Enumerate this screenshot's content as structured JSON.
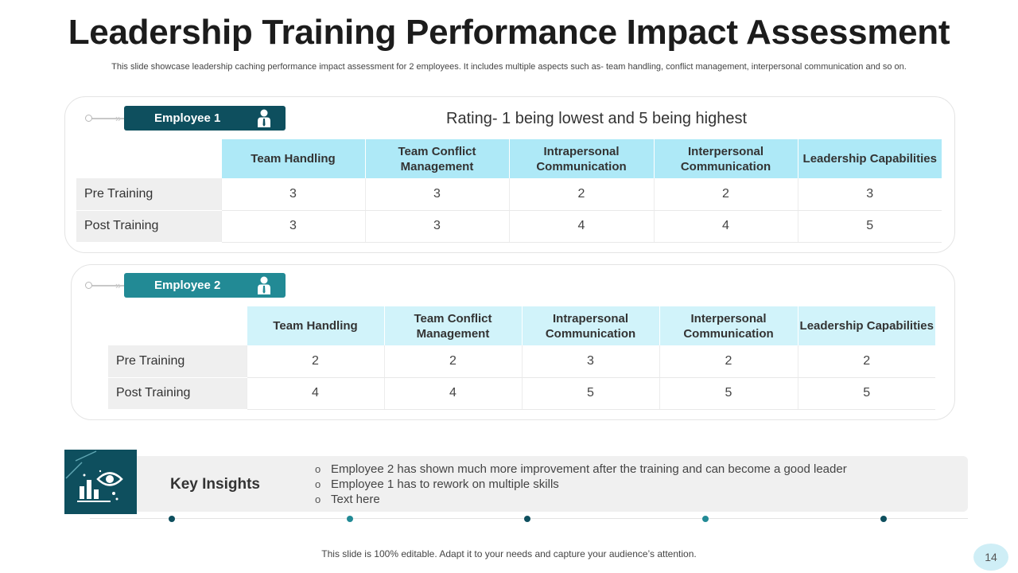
{
  "title": "Leadership Training Performance Impact Assessment",
  "subtitle": "This slide showcase leadership caching performance impact assessment for 2 employees. It includes multiple aspects such as- team handling, conflict management, interpersonal communication and so on.",
  "rating_note": "Rating- 1 being lowest and 5 being highest",
  "colors": {
    "employee1_badge": "#0e4f5e",
    "employee2_badge": "#228a95",
    "header_cell": "#aee9f7",
    "header_cell_2": "#d1f3fa",
    "dark_teal": "#0e4f5e",
    "teal": "#228a95"
  },
  "employee1": {
    "label": "Employee 1",
    "icon": "person-icon",
    "headers": [
      "Team Handling",
      "Team Conflict Management",
      "Intrapersonal Communication",
      "Interpersonal Communication",
      "Leadership Capabilities"
    ],
    "rows": [
      {
        "label": "Pre Training",
        "values": [
          "3",
          "3",
          "2",
          "2",
          "3"
        ]
      },
      {
        "label": "Post Training",
        "values": [
          "3",
          "3",
          "4",
          "4",
          "5"
        ]
      }
    ]
  },
  "employee2": {
    "label": "Employee 2",
    "icon": "person-icon",
    "headers": [
      "Team Handling",
      "Team Conflict Management",
      "Intrapersonal Communication",
      "Interpersonal Communication",
      "Leadership Capabilities"
    ],
    "rows": [
      {
        "label": "Pre Training",
        "values": [
          "2",
          "2",
          "3",
          "2",
          "2"
        ]
      },
      {
        "label": "Post Training",
        "values": [
          "4",
          "4",
          "5",
          "5",
          "5"
        ]
      }
    ]
  },
  "insights": {
    "title": "Key Insights",
    "icon": "insights-eye-chart-icon",
    "bullet": "o",
    "items": [
      "Employee 2 has shown much more improvement after the training and can become a good leader",
      "Employee 1 has to rework on multiple skills",
      "Text here"
    ]
  },
  "footer": "This slide is 100% editable. Adapt it to your needs and capture your audience’s attention.",
  "page_number": "14"
}
